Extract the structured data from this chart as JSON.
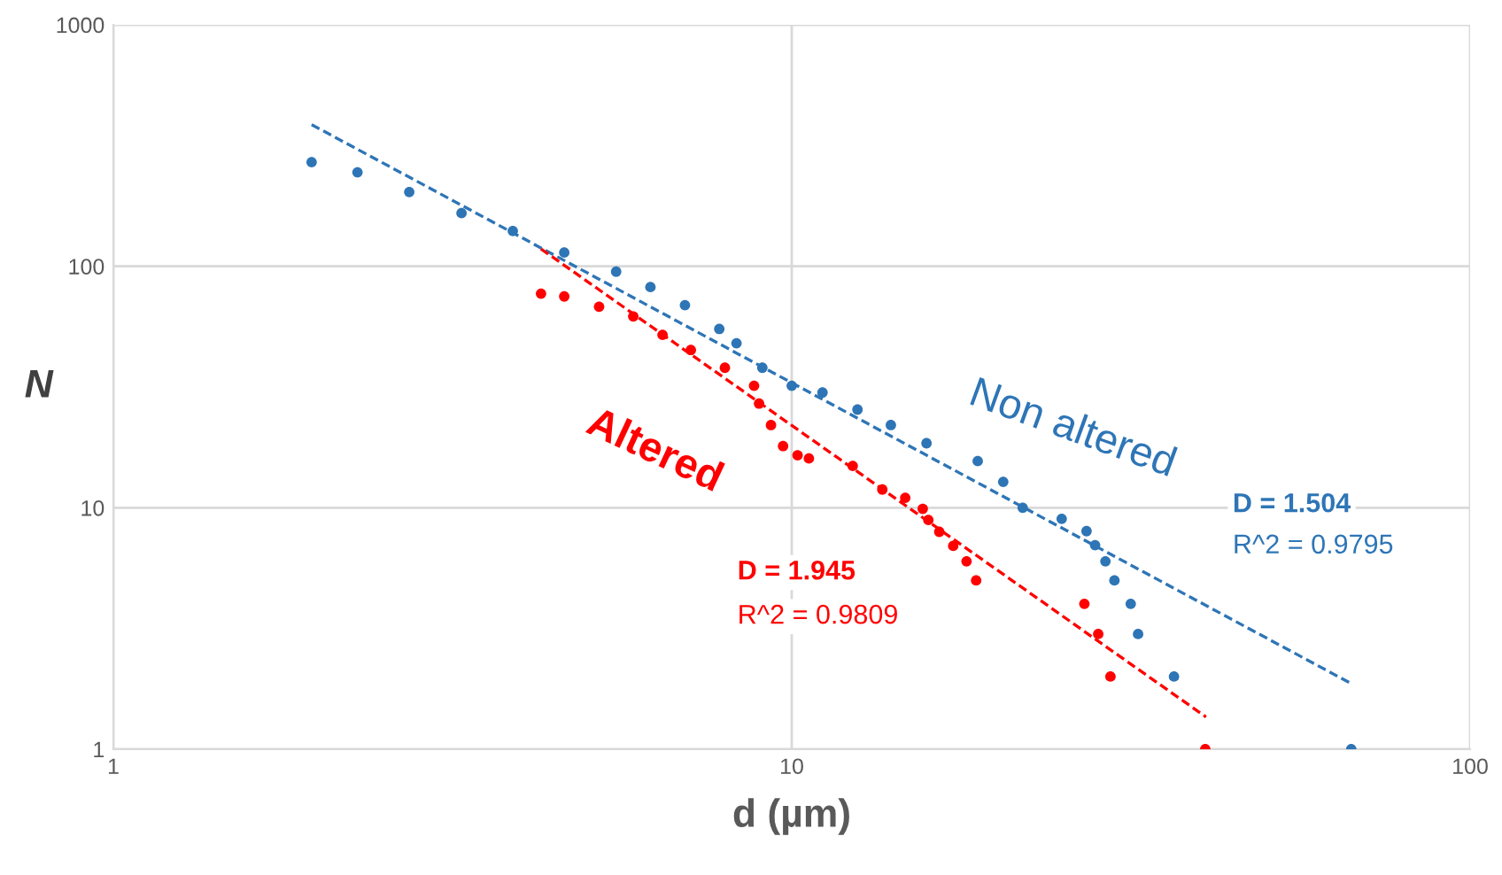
{
  "chart_data": {
    "type": "scatter",
    "xlabel": "d (µm)",
    "ylabel": "N",
    "log": "xy",
    "grid": true,
    "legend": false,
    "xlim": [
      1,
      100
    ],
    "ylim": [
      1,
      1000
    ],
    "xticks": [
      1,
      10,
      100
    ],
    "yticks": [
      1,
      10,
      100,
      1000
    ],
    "series": [
      {
        "name": "Non altered",
        "marker": "circle",
        "color": "#2e75b6",
        "x": [
          1.96,
          2.29,
          2.73,
          3.26,
          3.88,
          4.62,
          5.51,
          6.19,
          6.96,
          7.82,
          8.29,
          9.05,
          10,
          11.1,
          12.5,
          14.0,
          15.8,
          18.8,
          20.5,
          21.9,
          25.0,
          27.2,
          28.0,
          29.0,
          29.9,
          31.6,
          32.4,
          36.6,
          66.8
        ],
        "values": [
          270,
          245,
          203,
          166,
          140,
          114,
          95,
          82,
          69,
          55,
          48,
          38,
          32,
          30,
          25.5,
          22,
          18.5,
          15.6,
          12.8,
          10,
          9,
          8,
          7,
          6,
          5,
          4,
          3,
          2,
          1
        ]
      },
      {
        "name": "Altered",
        "marker": "circle",
        "color": "#ff0000",
        "x": [
          4.27,
          4.62,
          5.2,
          5.84,
          6.45,
          7.1,
          7.97,
          8.8,
          8.95,
          9.32,
          9.71,
          10.2,
          10.6,
          12.3,
          13.6,
          14.7,
          15.6,
          15.9,
          16.5,
          17.3,
          18.1,
          18.7,
          27.0,
          28.3,
          29.5,
          40.7
        ],
        "values": [
          77,
          75,
          68,
          62,
          52,
          45,
          38,
          32,
          27,
          22,
          18,
          16.5,
          16,
          14.9,
          11.9,
          11,
          9.9,
          8.9,
          7.95,
          6.95,
          6,
          5,
          4,
          3,
          2,
          1
        ]
      },
      {
        "type": "line",
        "line_style": "dashed",
        "color": "#2e75b6",
        "x": [
          1.96,
          66.8
        ],
        "values": [
          386,
          1.87
        ]
      },
      {
        "type": "line",
        "line_style": "dashed",
        "color": "#ff0000",
        "x": [
          4.27,
          40.8
        ],
        "values": [
          118,
          1.36
        ]
      }
    ],
    "annotations": [
      "D = 1.504",
      "R^2 = 0.9795",
      "D = 1.945",
      "R^2 = 0.9809"
    ]
  }
}
